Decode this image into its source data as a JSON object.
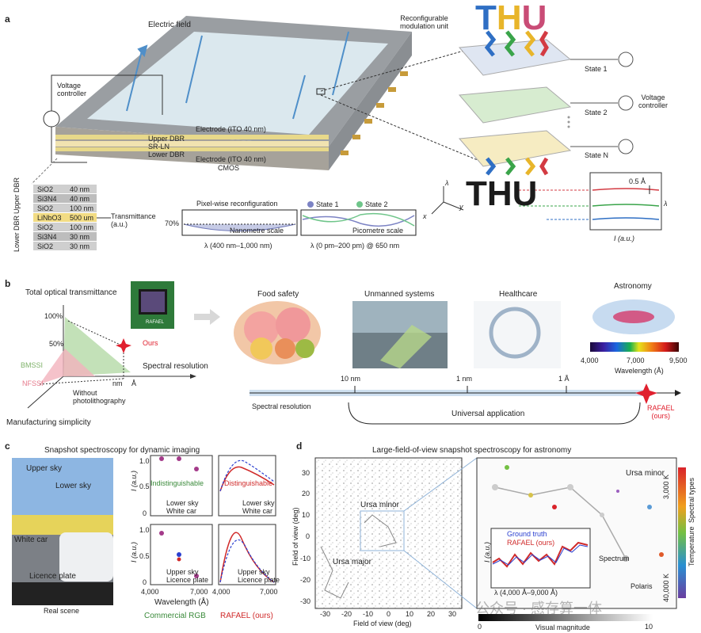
{
  "panel_a": {
    "label": "a",
    "electric_field": "Electric field",
    "reconfig_unit": [
      "Reconfigurable",
      "modulation unit"
    ],
    "voltage_controller": [
      "Voltage",
      "controller"
    ],
    "layers": [
      "Electrode (ITO 40 nm)",
      "Upper DBR",
      "SR-LN",
      "Lower DBR",
      "Electrode (ITO 40 nm)",
      "CMOS"
    ],
    "states": [
      "State 1",
      "State 2",
      "State N"
    ],
    "voltage_controller_right": [
      "Voltage",
      "controller"
    ],
    "thu_top": [
      "T",
      "H",
      "U"
    ],
    "thu_bottom": [
      "T",
      "H",
      "U"
    ],
    "axes": {
      "lambda": "λ",
      "x": "x",
      "y": "y"
    },
    "stack_groups": [
      "Upper DBR",
      "Lower DBR"
    ],
    "stack": [
      {
        "material": "SiO2",
        "thickness": "40 nm"
      },
      {
        "material": "Si3N4",
        "thickness": "40 nm"
      },
      {
        "material": "SiO2",
        "thickness": "100 nm"
      },
      {
        "material": "LiNbO3",
        "thickness": "500 um"
      },
      {
        "material": "SiO2",
        "thickness": "100 nm"
      },
      {
        "material": "Si3N4",
        "thickness": "30 nm"
      },
      {
        "material": "SiO2",
        "thickness": "30 nm"
      }
    ],
    "transmittance": [
      "Transmittance",
      "(a.u.)"
    ],
    "pixel_reconfig": "Pixel-wise reconfiguration",
    "pct_70": "70%",
    "nanometre_scale": "Nanometre scale",
    "picometre_scale": "Picometre scale",
    "legend_state1": "State 1",
    "legend_state2": "State 2",
    "xlabel_left": "λ (400 nm–1,000 nm)",
    "xlabel_right": "λ (0 pm–200 pm) @ 650 nm",
    "inset_scale": "0.5 Å",
    "inset_ylabel": "λ",
    "inset_xlabel": "I (a.u.)"
  },
  "panel_b": {
    "label": "b",
    "total_transmittance": "Total optical transmittance",
    "pct_100": "100%",
    "pct_50": "50%",
    "ours": "Ours",
    "chip_label": "RAFAEL",
    "bmssi": "BMSSI",
    "nfssi": "NFSSI",
    "nm": "nm",
    "angstrom": "Å",
    "spectral_resolution": "Spectral resolution",
    "without_photolith": [
      "Without",
      "photolithography"
    ],
    "manufacturing": "Manufacturing simplicity",
    "apps": [
      "Food safety",
      "Unmanned systems",
      "Healthcare",
      "Astronomy"
    ],
    "colorbar_ticks": [
      "4,000",
      "7,000",
      "9,500"
    ],
    "wavelength": "Wavelength (Å)",
    "scale_ticks": [
      "10 nm",
      "1 nm",
      "1 Å"
    ],
    "spectral_resolution_bottom": "Spectral resolution",
    "universal": "Universal application",
    "rafael": [
      "RAFAEL",
      "(ours)"
    ]
  },
  "panel_c": {
    "label": "c",
    "title": "Snapshot spectroscopy for dynamic imaging",
    "upper_sky": "Upper sky",
    "lower_sky": "Lower sky",
    "white_car": "White car",
    "licence_plate": "Licence plate",
    "real_scene": "Real scene",
    "indistinguishable": "Indistinguishable",
    "distinguishable": "Distinguishable",
    "ylabel": "I (a.u.)",
    "xlabel": "Wavelength (Å)",
    "rgb_label": "Commercial RGB",
    "rafael_label": "RAFAEL (ours)",
    "yticks": [
      "1.0",
      "0.5",
      "0"
    ],
    "xticks": [
      "4,000",
      "7,000"
    ],
    "leg_top_rgb": [
      "Lower sky",
      "White car"
    ],
    "leg_top_raf": [
      "Lower sky",
      "White car"
    ],
    "leg_bot_rgb": [
      "Upper sky",
      "Licence plate"
    ],
    "leg_bot_raf": [
      "Upper sky",
      "Licence plate"
    ]
  },
  "panel_d": {
    "label": "d",
    "title": "Large-field-of-view snapshot spectroscopy for astronomy",
    "ylabel": "Field of view (deg)",
    "xlabel": "Field of view (deg)",
    "yticks": [
      "30",
      "20",
      "10",
      "0",
      "-10",
      "-20",
      "-30"
    ],
    "xticks": [
      "-30",
      "-20",
      "-10",
      "0",
      "10",
      "20",
      "30"
    ],
    "ursa_minor": "Ursa minor",
    "ursa_major": "Ursa major",
    "ursa_minor_zoom": "Ursa minor",
    "polaris": "Polaris",
    "spectrum": "Spectrum",
    "ground_truth": "Ground truth",
    "rafael": "RAFAEL (ours)",
    "inset_x": "λ (4,000 Å–9,000 Å)",
    "inset_y": "I (a.u.)",
    "temp_top": "3,000 K",
    "temp_bottom": "40,000 K",
    "temperature": "Temperature",
    "spectral_types": "Spectral types",
    "mag_ticks": [
      "0",
      "10"
    ],
    "mag_label": "Visual magnitude"
  },
  "watermark": "公众号 · 感存算一体"
}
